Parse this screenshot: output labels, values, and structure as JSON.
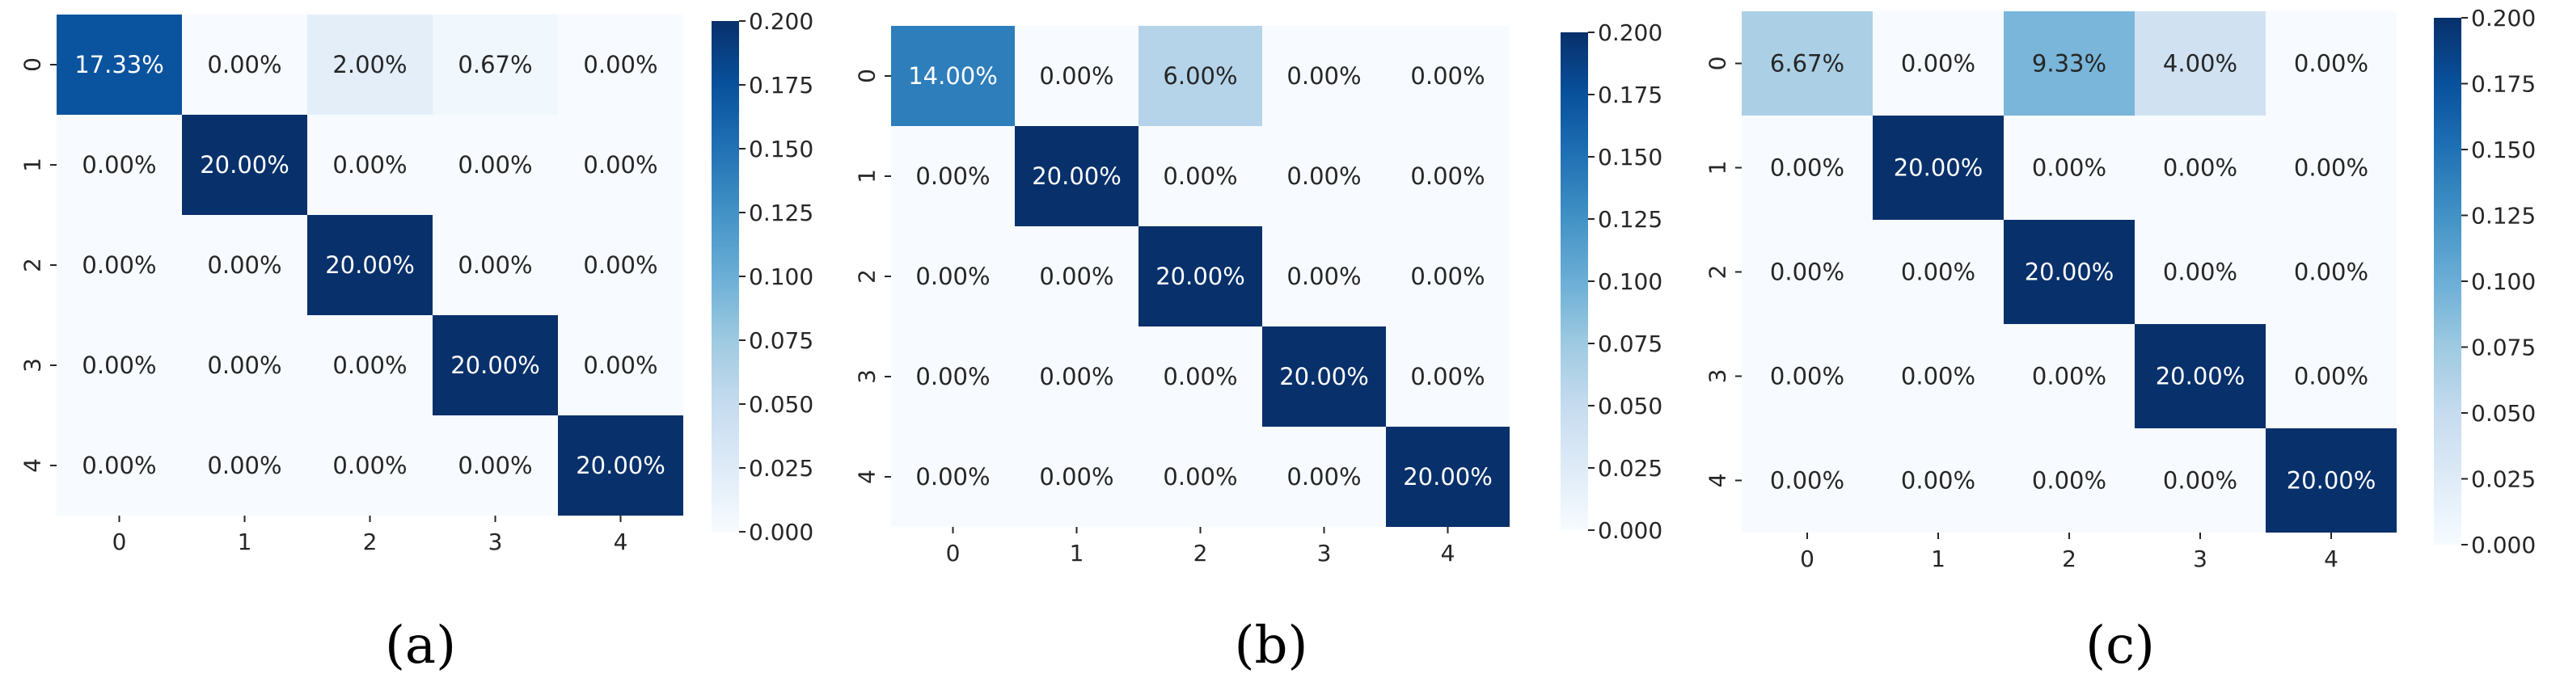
{
  "chart_data": [
    {
      "type": "heatmap",
      "panel_label": "(a)",
      "x_tick_labels": [
        "0",
        "1",
        "2",
        "3",
        "4"
      ],
      "y_tick_labels": [
        "0",
        "1",
        "2",
        "3",
        "4"
      ],
      "values": [
        [
          0.1733,
          0.0,
          0.02,
          0.0067,
          0.0
        ],
        [
          0.0,
          0.2,
          0.0,
          0.0,
          0.0
        ],
        [
          0.0,
          0.0,
          0.2,
          0.0,
          0.0
        ],
        [
          0.0,
          0.0,
          0.0,
          0.2,
          0.0
        ],
        [
          0.0,
          0.0,
          0.0,
          0.0,
          0.2
        ]
      ],
      "cell_labels": [
        [
          "17.33%",
          "0.00%",
          "2.00%",
          "0.67%",
          "0.00%"
        ],
        [
          "0.00%",
          "20.00%",
          "0.00%",
          "0.00%",
          "0.00%"
        ],
        [
          "0.00%",
          "0.00%",
          "20.00%",
          "0.00%",
          "0.00%"
        ],
        [
          "0.00%",
          "0.00%",
          "0.00%",
          "20.00%",
          "0.00%"
        ],
        [
          "0.00%",
          "0.00%",
          "0.00%",
          "0.00%",
          "20.00%"
        ]
      ],
      "colorbar": {
        "range": [
          0.0,
          0.2
        ],
        "ticks": [
          "0.000",
          "0.025",
          "0.050",
          "0.075",
          "0.100",
          "0.125",
          "0.150",
          "0.175",
          "0.200"
        ],
        "colormap": "Blues"
      }
    },
    {
      "type": "heatmap",
      "panel_label": "(b)",
      "x_tick_labels": [
        "0",
        "1",
        "2",
        "3",
        "4"
      ],
      "y_tick_labels": [
        "0",
        "1",
        "2",
        "3",
        "4"
      ],
      "values": [
        [
          0.14,
          0.0,
          0.06,
          0.0,
          0.0
        ],
        [
          0.0,
          0.2,
          0.0,
          0.0,
          0.0
        ],
        [
          0.0,
          0.0,
          0.2,
          0.0,
          0.0
        ],
        [
          0.0,
          0.0,
          0.0,
          0.2,
          0.0
        ],
        [
          0.0,
          0.0,
          0.0,
          0.0,
          0.2
        ]
      ],
      "cell_labels": [
        [
          "14.00%",
          "0.00%",
          "6.00%",
          "0.00%",
          "0.00%"
        ],
        [
          "0.00%",
          "20.00%",
          "0.00%",
          "0.00%",
          "0.00%"
        ],
        [
          "0.00%",
          "0.00%",
          "20.00%",
          "0.00%",
          "0.00%"
        ],
        [
          "0.00%",
          "0.00%",
          "0.00%",
          "20.00%",
          "0.00%"
        ],
        [
          "0.00%",
          "0.00%",
          "0.00%",
          "0.00%",
          "20.00%"
        ]
      ],
      "colorbar": {
        "range": [
          0.0,
          0.2
        ],
        "ticks": [
          "0.000",
          "0.025",
          "0.050",
          "0.075",
          "0.100",
          "0.125",
          "0.150",
          "0.175",
          "0.200"
        ],
        "colormap": "Blues"
      }
    },
    {
      "type": "heatmap",
      "panel_label": "(c)",
      "x_tick_labels": [
        "0",
        "1",
        "2",
        "3",
        "4"
      ],
      "y_tick_labels": [
        "0",
        "1",
        "2",
        "3",
        "4"
      ],
      "values": [
        [
          0.0667,
          0.0,
          0.0933,
          0.04,
          0.0
        ],
        [
          0.0,
          0.2,
          0.0,
          0.0,
          0.0
        ],
        [
          0.0,
          0.0,
          0.2,
          0.0,
          0.0
        ],
        [
          0.0,
          0.0,
          0.0,
          0.2,
          0.0
        ],
        [
          0.0,
          0.0,
          0.0,
          0.0,
          0.2
        ]
      ],
      "cell_labels": [
        [
          "6.67%",
          "0.00%",
          "9.33%",
          "4.00%",
          "0.00%"
        ],
        [
          "0.00%",
          "20.00%",
          "0.00%",
          "0.00%",
          "0.00%"
        ],
        [
          "0.00%",
          "0.00%",
          "20.00%",
          "0.00%",
          "0.00%"
        ],
        [
          "0.00%",
          "0.00%",
          "0.00%",
          "20.00%",
          "0.00%"
        ],
        [
          "0.00%",
          "0.00%",
          "0.00%",
          "0.00%",
          "20.00%"
        ]
      ],
      "colorbar": {
        "range": [
          0.0,
          0.2
        ],
        "ticks": [
          "0.000",
          "0.025",
          "0.050",
          "0.075",
          "0.100",
          "0.125",
          "0.150",
          "0.175",
          "0.200"
        ],
        "colormap": "Blues"
      }
    }
  ]
}
